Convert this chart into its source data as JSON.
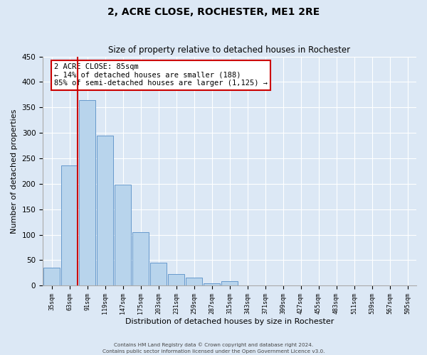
{
  "title": "2, ACRE CLOSE, ROCHESTER, ME1 2RE",
  "subtitle": "Size of property relative to detached houses in Rochester",
  "xlabel": "Distribution of detached houses by size in Rochester",
  "ylabel": "Number of detached properties",
  "bar_values": [
    35,
    236,
    365,
    295,
    198,
    105,
    45,
    22,
    15,
    4,
    9,
    1,
    0,
    0,
    0,
    0,
    0,
    0,
    1,
    0,
    0
  ],
  "bar_labels": [
    "35sqm",
    "63sqm",
    "91sqm",
    "119sqm",
    "147sqm",
    "175sqm",
    "203sqm",
    "231sqm",
    "259sqm",
    "287sqm",
    "315sqm",
    "343sqm",
    "371sqm",
    "399sqm",
    "427sqm",
    "455sqm",
    "483sqm",
    "511sqm",
    "539sqm",
    "567sqm",
    "595sqm"
  ],
  "bar_color": "#b8d4ec",
  "bar_edge_color": "#6699cc",
  "ylim": [
    0,
    450
  ],
  "yticks": [
    0,
    50,
    100,
    150,
    200,
    250,
    300,
    350,
    400,
    450
  ],
  "marker_color": "#cc0000",
  "annotation_title": "2 ACRE CLOSE: 85sqm",
  "annotation_line1": "← 14% of detached houses are smaller (188)",
  "annotation_line2": "85% of semi-detached houses are larger (1,125) →",
  "footnote1": "Contains HM Land Registry data © Crown copyright and database right 2024.",
  "footnote2": "Contains public sector information licensed under the Open Government Licence v3.0.",
  "bg_color": "#dce8f5",
  "plot_bg_color": "#dce8f5",
  "n_bars": 21
}
